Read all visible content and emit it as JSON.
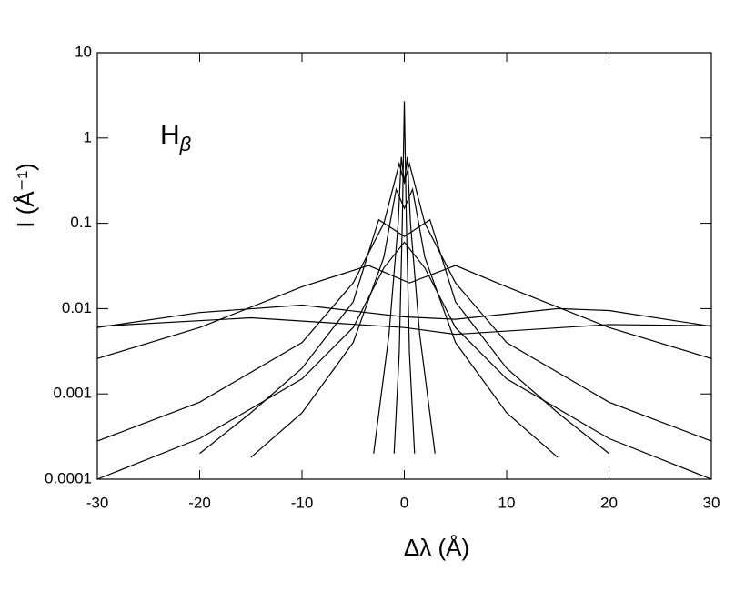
{
  "chart_data": {
    "type": "line",
    "x_label": "Δλ (Å)",
    "y_label": "I (Å⁻¹)",
    "annotation": {
      "text": "H",
      "subscript": "β"
    },
    "log_y": true,
    "grid": false,
    "color": "#000000",
    "xlim": [
      -30,
      30
    ],
    "xticks": [
      -30,
      -20,
      -10,
      0,
      10,
      20,
      30
    ],
    "ylim": [
      0.0001,
      10
    ],
    "yticks": [
      0.0001,
      0.001,
      0.01,
      0.1,
      1,
      10
    ],
    "series": [
      {
        "x": [
          -1,
          -0.5,
          -0.2,
          0,
          0.2,
          0.5,
          1
        ],
        "values": [
          0.0002,
          0.003,
          0.1,
          2.7,
          0.1,
          0.003,
          0.0002
        ]
      },
      {
        "x": [
          -3,
          -1.5,
          -0.6,
          -0.3,
          0,
          0.3,
          0.6,
          1.5,
          3
        ],
        "values": [
          0.0002,
          0.005,
          0.1,
          0.6,
          0.3,
          0.6,
          0.1,
          0.005,
          0.0002
        ]
      },
      {
        "x": [
          -15,
          -10,
          -5,
          -2,
          -0.8,
          0,
          0.8,
          2,
          5,
          10,
          15
        ],
        "values": [
          0.00018,
          0.0006,
          0.004,
          0.04,
          0.25,
          0.15,
          0.25,
          0.04,
          0.004,
          0.0006,
          0.00018
        ]
      },
      {
        "x": [
          -20,
          -15,
          -10,
          -5,
          -2.5,
          0,
          2.5,
          5,
          10,
          15,
          20
        ],
        "values": [
          0.0002,
          0.0006,
          0.002,
          0.012,
          0.11,
          0.07,
          0.11,
          0.012,
          0.002,
          0.0006,
          0.0002
        ]
      },
      {
        "x": [
          -30,
          -20,
          -10,
          -5,
          -2,
          -0.5,
          0,
          0.5,
          2,
          5,
          10,
          20,
          30
        ],
        "values": [
          0.00028,
          0.0008,
          0.004,
          0.02,
          0.1,
          0.5,
          0.3,
          0.5,
          0.1,
          0.02,
          0.004,
          0.0008,
          0.00028
        ]
      },
      {
        "x": [
          -30,
          -20,
          -10,
          -5,
          -2,
          0,
          2,
          5,
          10,
          20,
          30
        ],
        "values": [
          0.0001,
          0.0003,
          0.0015,
          0.006,
          0.03,
          0.06,
          0.03,
          0.006,
          0.0015,
          0.0003,
          0.0001
        ]
      },
      {
        "x": [
          -30,
          -20,
          -10,
          -3.5,
          0.5,
          5,
          10,
          20,
          30
        ],
        "values": [
          0.0026,
          0.006,
          0.018,
          0.032,
          0.02,
          0.032,
          0.018,
          0.006,
          0.0026
        ]
      },
      {
        "x": [
          -30,
          -20,
          -10,
          0,
          5,
          15,
          20,
          30
        ],
        "values": [
          0.006,
          0.009,
          0.011,
          0.008,
          0.0075,
          0.01,
          0.0095,
          0.0062
        ]
      },
      {
        "x": [
          -30,
          -15,
          0,
          5,
          20,
          30
        ],
        "values": [
          0.0062,
          0.0078,
          0.006,
          0.005,
          0.0065,
          0.0063
        ]
      }
    ]
  }
}
